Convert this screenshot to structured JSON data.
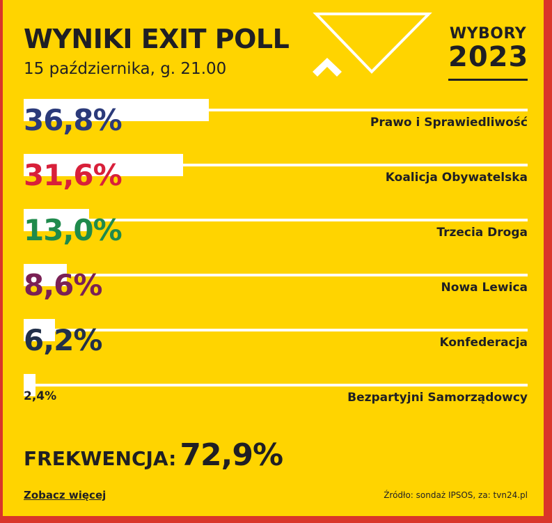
{
  "header": {
    "title": "WYNIKI EXIT POLL",
    "subtitle": "15 października, g. 21.00"
  },
  "logo": {
    "line1": "WYBORY",
    "line2": "2023"
  },
  "chart_data": {
    "type": "bar",
    "orientation": "horizontal",
    "title": "WYNIKI EXIT POLL",
    "subtitle": "15 października, g. 21.00",
    "unit": "%",
    "xlim": [
      0,
      100
    ],
    "categories": [
      "Prawo i Sprawiedliwość",
      "Koalicja Obywatelska",
      "Trzecia Droga",
      "Nowa Lewica",
      "Konfederacja",
      "Bezpartyjni Samorządowcy"
    ],
    "values": [
      36.8,
      31.6,
      13.0,
      8.6,
      6.2,
      2.4
    ],
    "value_labels": [
      "36,8%",
      "31,6%",
      "13,0%",
      "8,6%",
      "6,2%",
      "2,4%"
    ],
    "label_colors": [
      "#2b3a7a",
      "#d8203a",
      "#1f8a4c",
      "#7a2055",
      "#22304a",
      "#1f1f24"
    ]
  },
  "turnout": {
    "label": "FREKWENCJA:",
    "value": "72,9%"
  },
  "footer": {
    "more_link": "Zobacz więcej",
    "source": "Źródło: sondaż IPSOS, za: tvn24.pl"
  },
  "colors": {
    "background": "#ffd400",
    "frame": "#d9362a",
    "text": "#1f1f24",
    "bar": "#ffffff"
  }
}
